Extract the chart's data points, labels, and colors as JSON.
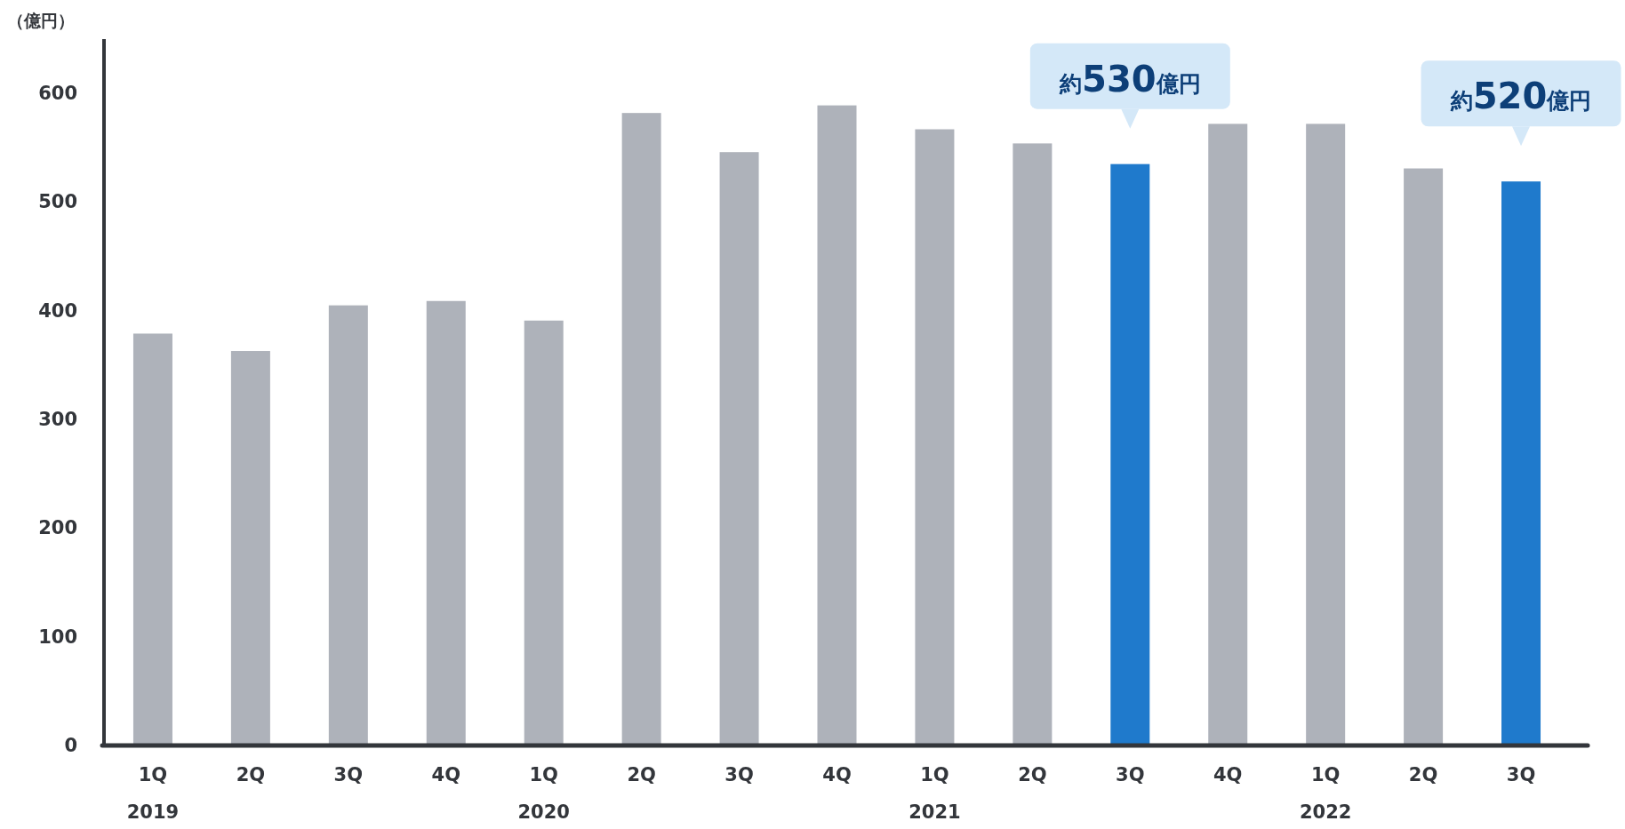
{
  "chart_data": {
    "type": "bar",
    "ylabel": "（億円）",
    "categories": [
      "1Q\n2019",
      "2Q",
      "3Q",
      "4Q",
      "1Q\n2020",
      "2Q",
      "3Q",
      "4Q",
      "1Q\n2021",
      "2Q",
      "3Q",
      "4Q",
      "1Q\n2022",
      "2Q",
      "3Q"
    ],
    "values": [
      379,
      363,
      405,
      409,
      391,
      582,
      546,
      589,
      567,
      554,
      535,
      572,
      572,
      531,
      519
    ],
    "colors": [
      "#aeb2ba",
      "#aeb2ba",
      "#aeb2ba",
      "#aeb2ba",
      "#aeb2ba",
      "#aeb2ba",
      "#aeb2ba",
      "#aeb2ba",
      "#aeb2ba",
      "#aeb2ba",
      "#1f7acc",
      "#aeb2ba",
      "#aeb2ba",
      "#aeb2ba",
      "#1f7acc"
    ],
    "value_labels": [
      null,
      null,
      null,
      null,
      null,
      null,
      null,
      null,
      null,
      null,
      "約530億円",
      null,
      null,
      null,
      "約520億円"
    ],
    "ylim": [
      0,
      650
    ],
    "yticks": [
      0,
      100,
      200,
      300,
      400,
      500,
      600
    ],
    "grid": false
  }
}
